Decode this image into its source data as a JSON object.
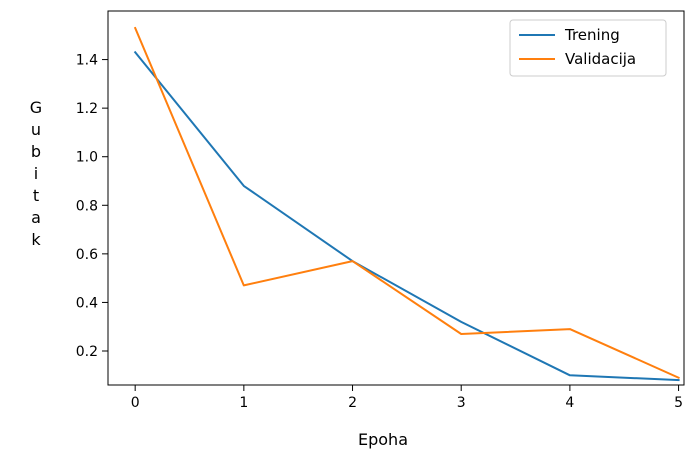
{
  "chart_data": {
    "type": "line",
    "xlabel": "Epoha",
    "ylabel_chars": [
      "G",
      "u",
      "b",
      "i",
      "t",
      "a",
      "k"
    ],
    "x": [
      0,
      1,
      2,
      3,
      4,
      5
    ],
    "xlim": [
      -0.25,
      5.05
    ],
    "ylim": [
      0.06,
      1.6
    ],
    "xticks": [
      0,
      1,
      2,
      3,
      4,
      5
    ],
    "yticks": [
      0.2,
      0.4,
      0.6,
      0.8,
      1.0,
      1.2,
      1.4
    ],
    "ytick_labels": [
      "0.2",
      "0.4",
      "0.6",
      "0.8",
      "1.0",
      "1.2",
      "1.4"
    ],
    "legend_position": "top-right",
    "grid": false,
    "series": [
      {
        "name": "Trening",
        "color": "#1f77b4",
        "values": [
          1.43,
          0.88,
          0.57,
          0.32,
          0.1,
          0.08
        ]
      },
      {
        "name": "Validacija",
        "color": "#ff7f0e",
        "values": [
          1.53,
          0.47,
          0.57,
          0.27,
          0.29,
          0.09
        ]
      }
    ]
  }
}
